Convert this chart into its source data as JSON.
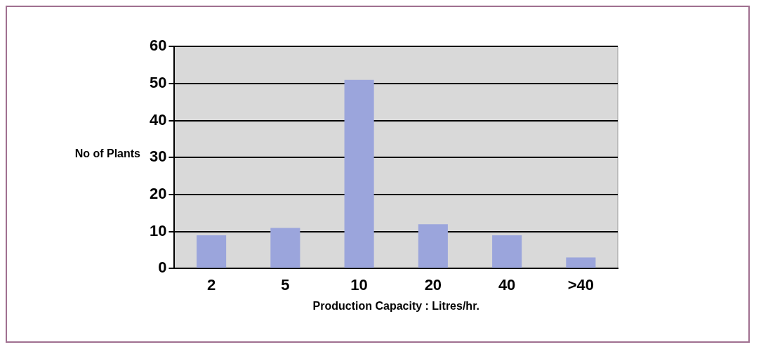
{
  "chart_data": {
    "type": "bar",
    "xlabel": "Production Capacity : Litres/hr.",
    "ylabel": "No of Plants",
    "categories": [
      "2",
      "5",
      "10",
      "20",
      "40",
      ">40"
    ],
    "values": [
      9,
      11,
      51,
      12,
      9,
      3
    ],
    "color": "#9ba5dc",
    "ylim": [
      0,
      60
    ],
    "yticks": [
      0,
      10,
      20,
      30,
      40,
      50,
      60
    ],
    "grid": "y"
  }
}
